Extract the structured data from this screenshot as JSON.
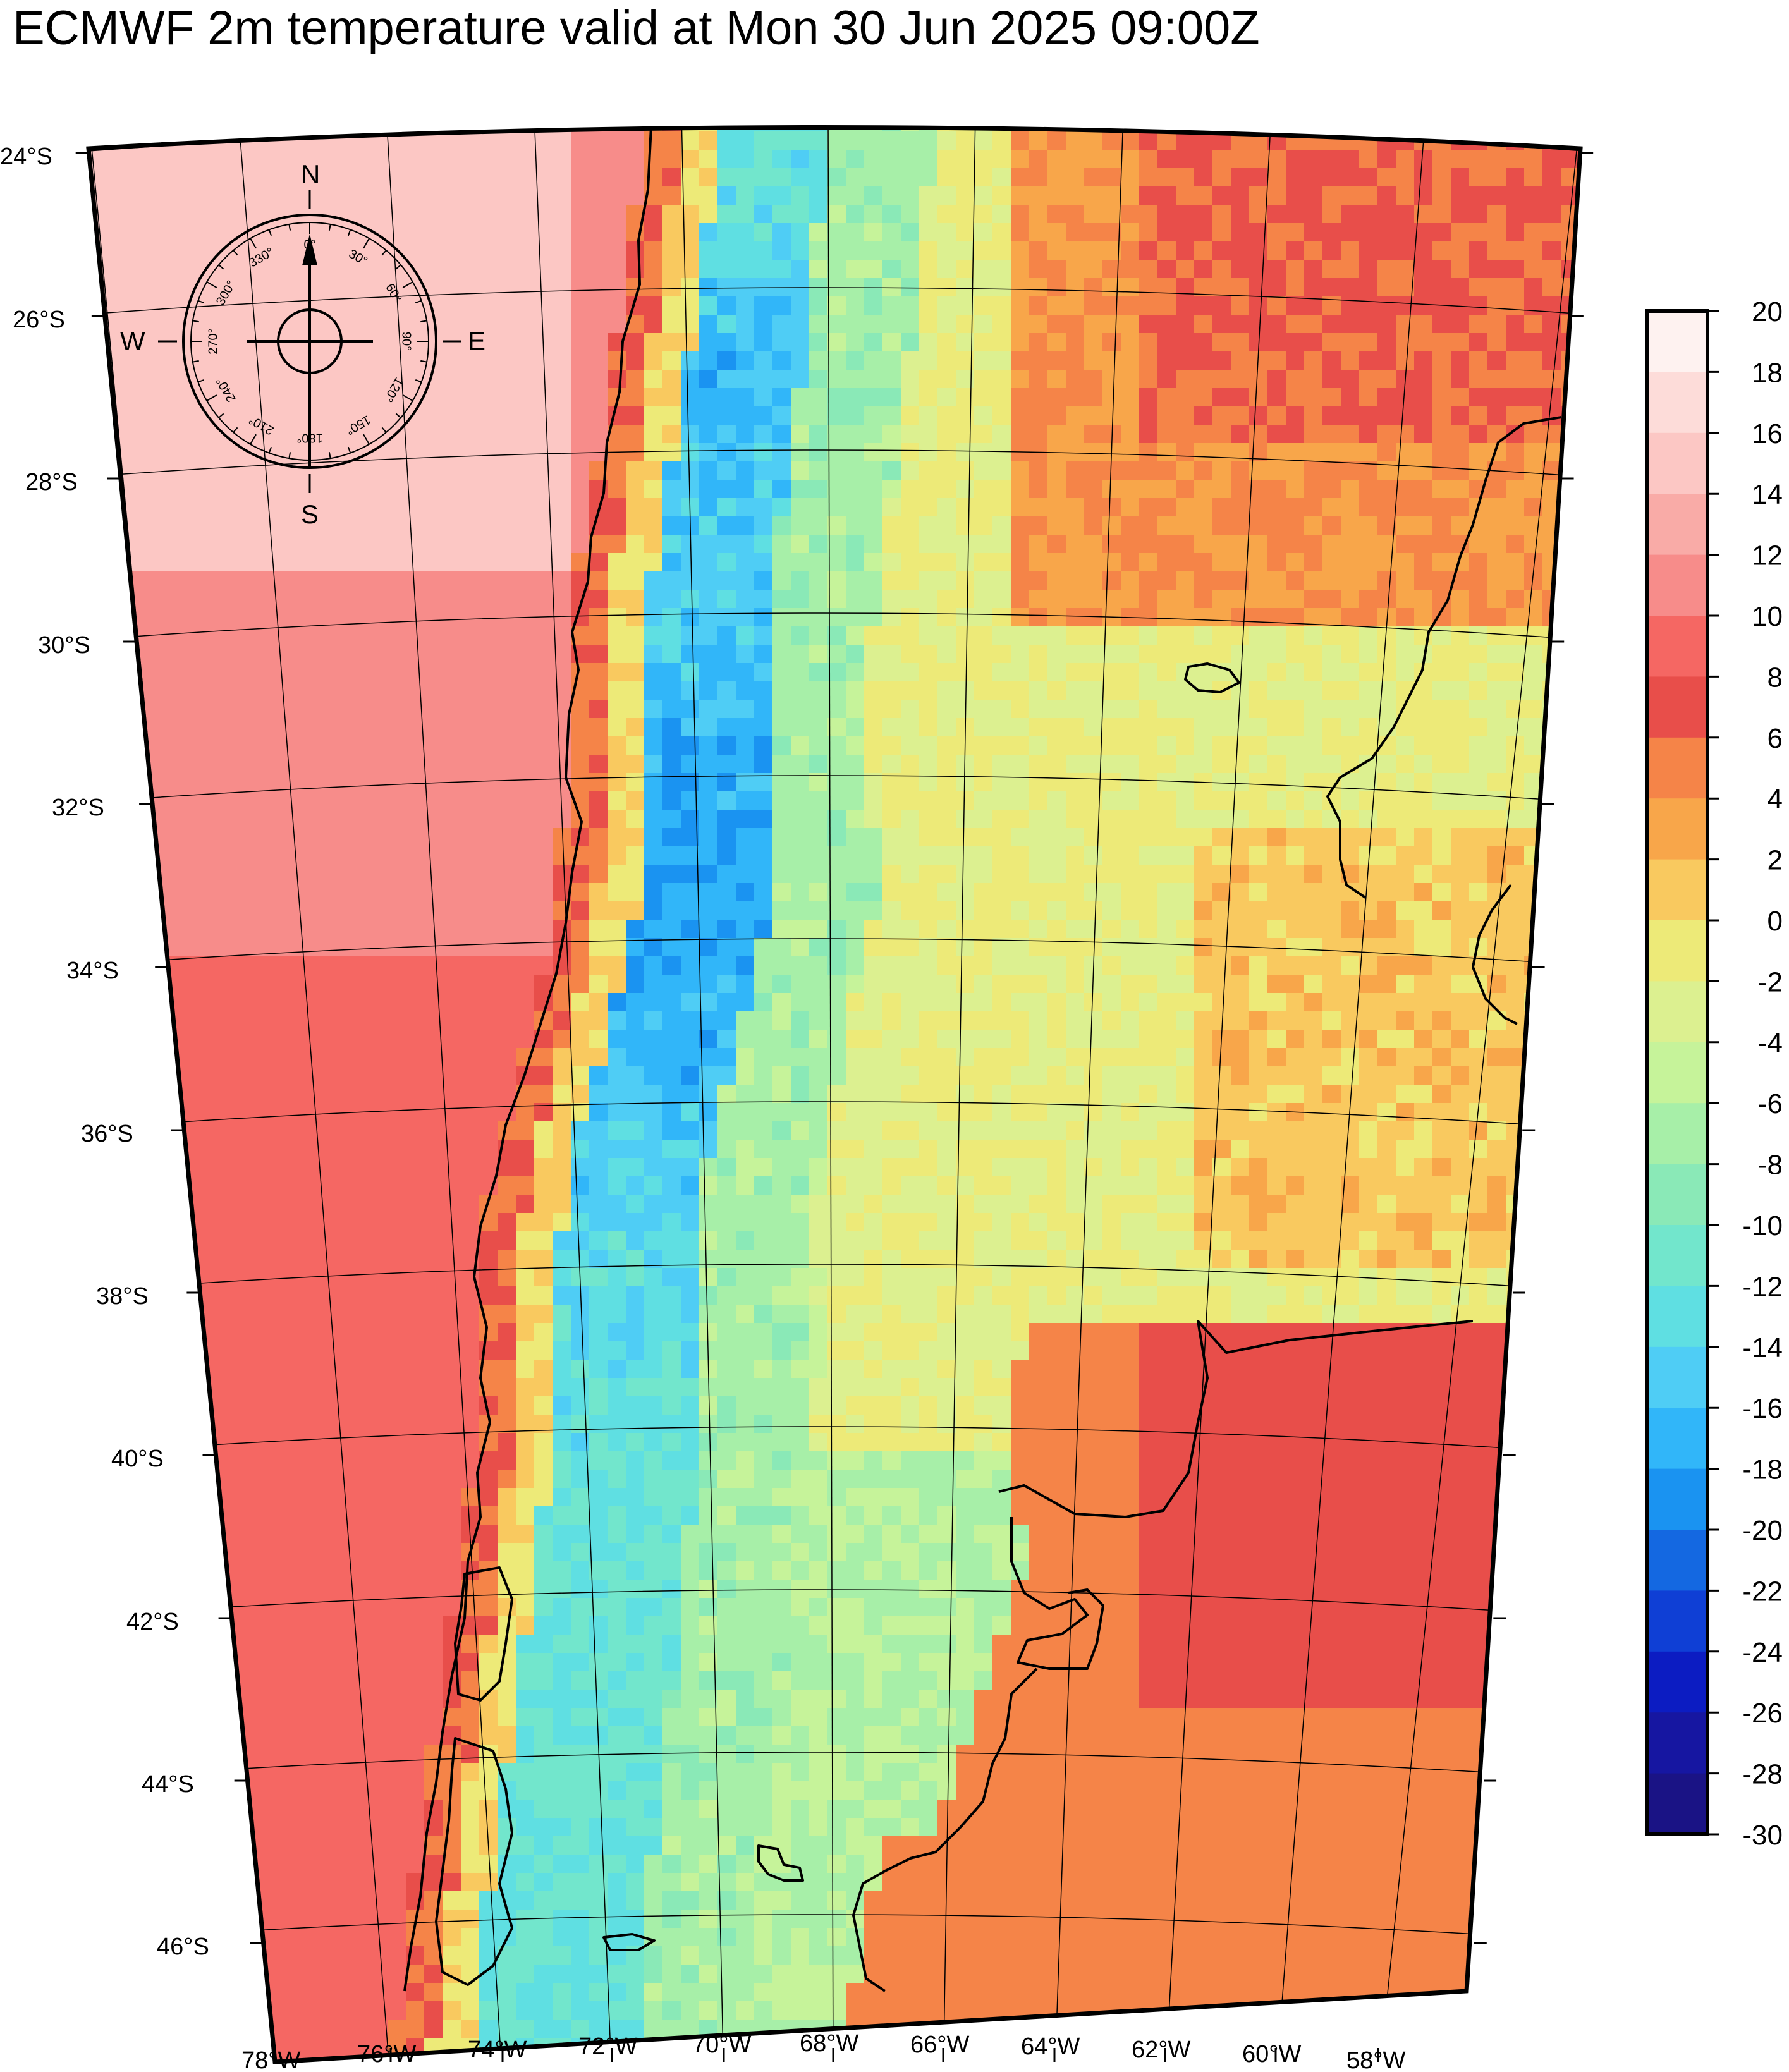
{
  "title": "ECMWF 2m temperature valid at Mon 30 Jun 2025 09:00Z",
  "map": {
    "lat_labels": [
      "24°S",
      "26°S",
      "28°S",
      "30°S",
      "32°S",
      "34°S",
      "36°S",
      "38°S",
      "40°S",
      "42°S",
      "44°S",
      "46°S"
    ],
    "lon_labels": [
      "78°W",
      "76°W",
      "74°W",
      "72°W",
      "70°W",
      "68°W",
      "66°W",
      "64°W",
      "62°W",
      "60°W",
      "58°W"
    ]
  },
  "compass": {
    "N": "N",
    "S": "S",
    "E": "E",
    "W": "W",
    "degrees": [
      "0°",
      "30°",
      "60°",
      "90°",
      "120°",
      "150°",
      "180°",
      "210°",
      "240°",
      "270°",
      "300°",
      "330°"
    ]
  },
  "colorbar": {
    "labels": [
      "20",
      "18",
      "16",
      "14",
      "12",
      "10",
      "8",
      "6",
      "4",
      "2",
      "0",
      "-2",
      "-4",
      "-6",
      "-8",
      "-10",
      "-12",
      "-14",
      "-16",
      "-18",
      "-20",
      "-22",
      "-24",
      "-26",
      "-28",
      "-30"
    ],
    "colors": [
      "#fef2f0",
      "#fddcd9",
      "#fcc7c4",
      "#f9aba7",
      "#f78c8a",
      "#f56763",
      "#e84e4a",
      "#f58448",
      "#f8a64a",
      "#f9c95f",
      "#edea78",
      "#dcf090",
      "#c6f39a",
      "#a7efa8",
      "#8ae9b7",
      "#72e6cc",
      "#5fdfe2",
      "#4fcdf5",
      "#31b6f9",
      "#1a93f1",
      "#1468e1",
      "#0f3fd5",
      "#0c1cc2",
      "#1616a1",
      "#1a1385"
    ]
  }
}
